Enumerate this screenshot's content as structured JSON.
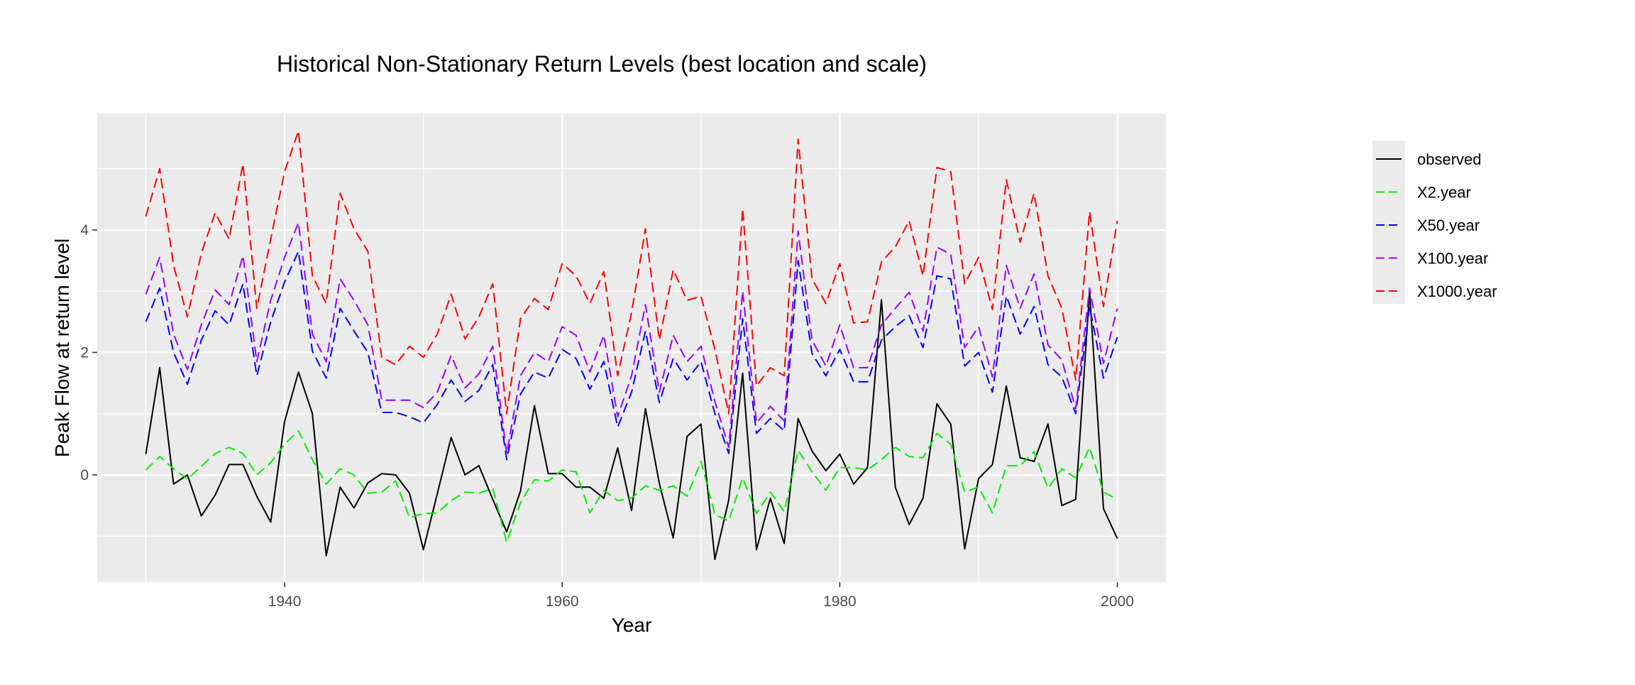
{
  "chart_data": {
    "type": "line",
    "title": "Historical Non-Stationary Return Levels (best location and scale)",
    "xlabel": "Year",
    "ylabel": "Peak Flow at return level",
    "xlim": [
      1926.5,
      2003.5
    ],
    "ylim": [
      -1.75,
      5.9
    ],
    "x_ticks": [
      1940,
      1960,
      1980,
      2000
    ],
    "y_ticks": [
      0,
      2,
      4
    ],
    "grid": true,
    "legend_position": "right",
    "x": [
      1930,
      1931,
      1932,
      1933,
      1934,
      1935,
      1936,
      1937,
      1938,
      1939,
      1940,
      1941,
      1942,
      1943,
      1944,
      1945,
      1946,
      1947,
      1948,
      1949,
      1950,
      1951,
      1952,
      1953,
      1954,
      1955,
      1956,
      1957,
      1958,
      1959,
      1960,
      1961,
      1962,
      1963,
      1964,
      1965,
      1966,
      1967,
      1968,
      1969,
      1970,
      1971,
      1972,
      1973,
      1974,
      1975,
      1976,
      1977,
      1978,
      1979,
      1980,
      1981,
      1982,
      1983,
      1984,
      1985,
      1986,
      1987,
      1988,
      1989,
      1990,
      1991,
      1992,
      1993,
      1994,
      1995,
      1996,
      1997,
      1998,
      1999,
      2000
    ],
    "series": [
      {
        "name": "observed",
        "color": "#000000",
        "dashed": false,
        "values": [
          0.34,
          1.75,
          -0.15,
          0.0,
          -0.67,
          -0.33,
          0.17,
          0.17,
          -0.35,
          -0.77,
          0.87,
          1.68,
          1.0,
          -1.32,
          -0.2,
          -0.54,
          -0.13,
          0.02,
          0.0,
          -0.3,
          -1.22,
          -0.31,
          0.61,
          0.0,
          0.15,
          -0.4,
          -0.93,
          -0.26,
          1.13,
          0.02,
          0.02,
          -0.2,
          -0.2,
          -0.38,
          0.44,
          -0.58,
          1.08,
          -0.14,
          -1.03,
          0.63,
          0.83,
          -1.38,
          -0.41,
          1.66,
          -1.22,
          -0.38,
          -1.12,
          0.92,
          0.39,
          0.07,
          0.34,
          -0.15,
          0.12,
          2.86,
          -0.2,
          -0.81,
          -0.38,
          1.16,
          0.83,
          -1.21,
          -0.06,
          0.17,
          1.45,
          0.28,
          0.22,
          0.83,
          -0.5,
          -0.4,
          3.0,
          -0.55,
          -1.04
        ]
      },
      {
        "name": "X2.year",
        "color": "#00ee00",
        "dashed": true,
        "values": [
          0.08,
          0.3,
          0.1,
          -0.07,
          0.14,
          0.35,
          0.45,
          0.35,
          0.0,
          0.2,
          0.5,
          0.72,
          0.25,
          -0.15,
          0.1,
          0.0,
          -0.3,
          -0.28,
          -0.1,
          -0.7,
          -0.63,
          -0.62,
          -0.42,
          -0.28,
          -0.3,
          -0.22,
          -1.1,
          -0.45,
          -0.08,
          -0.1,
          0.08,
          0.05,
          -0.62,
          -0.25,
          -0.42,
          -0.38,
          -0.18,
          -0.25,
          -0.18,
          -0.35,
          0.22,
          -0.65,
          -0.75,
          -0.05,
          -0.63,
          -0.28,
          -0.6,
          0.4,
          0.05,
          -0.25,
          0.12,
          0.12,
          0.08,
          0.25,
          0.45,
          0.3,
          0.28,
          0.68,
          0.5,
          -0.28,
          -0.2,
          -0.62,
          0.15,
          0.15,
          0.38,
          -0.22,
          0.1,
          -0.05,
          0.45,
          -0.28,
          -0.4
        ]
      },
      {
        "name": "X50.year",
        "color": "#0000ff",
        "dashed": true,
        "values": [
          2.5,
          3.05,
          2.0,
          1.48,
          2.2,
          2.68,
          2.45,
          3.12,
          1.62,
          2.5,
          3.15,
          3.65,
          2.02,
          1.58,
          2.72,
          2.35,
          2.0,
          1.02,
          1.02,
          0.95,
          0.85,
          1.15,
          1.55,
          1.2,
          1.38,
          1.8,
          0.25,
          1.32,
          1.68,
          1.58,
          2.05,
          1.9,
          1.4,
          1.85,
          0.78,
          1.35,
          2.35,
          1.18,
          1.9,
          1.55,
          1.85,
          1.0,
          0.35,
          2.55,
          0.68,
          0.92,
          0.72,
          3.5,
          1.98,
          1.62,
          2.05,
          1.52,
          1.52,
          2.2,
          2.42,
          2.6,
          2.08,
          3.25,
          3.2,
          1.78,
          2.0,
          1.35,
          2.92,
          2.3,
          2.75,
          1.8,
          1.6,
          1.0,
          2.75,
          1.58,
          2.25
        ]
      },
      {
        "name": "X100.year",
        "color": "#9900ff",
        "dashed": true,
        "values": [
          2.95,
          3.55,
          2.3,
          1.72,
          2.45,
          3.02,
          2.78,
          3.58,
          1.85,
          2.85,
          3.55,
          4.12,
          2.3,
          1.85,
          3.2,
          2.85,
          2.45,
          1.22,
          1.22,
          1.22,
          1.1,
          1.35,
          1.95,
          1.42,
          1.65,
          2.1,
          0.35,
          1.62,
          2.0,
          1.85,
          2.42,
          2.28,
          1.68,
          2.28,
          0.95,
          1.62,
          2.78,
          1.35,
          2.28,
          1.85,
          2.1,
          1.2,
          0.45,
          3.0,
          0.85,
          1.12,
          0.88,
          3.98,
          2.2,
          1.78,
          2.45,
          1.75,
          1.75,
          2.45,
          2.72,
          2.98,
          2.35,
          3.72,
          3.6,
          2.08,
          2.42,
          1.6,
          3.42,
          2.72,
          3.28,
          2.12,
          1.88,
          1.08,
          3.05,
          1.82,
          2.72
        ]
      },
      {
        "name": "X1000.year",
        "color": "#ff0000",
        "dashed": true,
        "values": [
          4.22,
          5.0,
          3.42,
          2.58,
          3.62,
          4.28,
          3.85,
          5.08,
          2.72,
          3.85,
          4.95,
          5.62,
          3.25,
          2.8,
          4.6,
          4.02,
          3.65,
          1.92,
          1.8,
          2.1,
          1.92,
          2.3,
          2.95,
          2.22,
          2.58,
          3.12,
          1.0,
          2.55,
          2.88,
          2.7,
          3.45,
          3.25,
          2.8,
          3.32,
          1.62,
          2.65,
          4.02,
          2.2,
          3.35,
          2.85,
          2.92,
          2.05,
          1.0,
          4.35,
          1.45,
          1.75,
          1.62,
          5.48,
          3.2,
          2.8,
          3.45,
          2.48,
          2.5,
          3.48,
          3.72,
          4.15,
          3.25,
          5.02,
          4.95,
          3.12,
          3.55,
          2.7,
          4.82,
          3.8,
          4.6,
          3.25,
          2.72,
          1.55,
          4.3,
          2.75,
          4.15
        ]
      }
    ]
  }
}
